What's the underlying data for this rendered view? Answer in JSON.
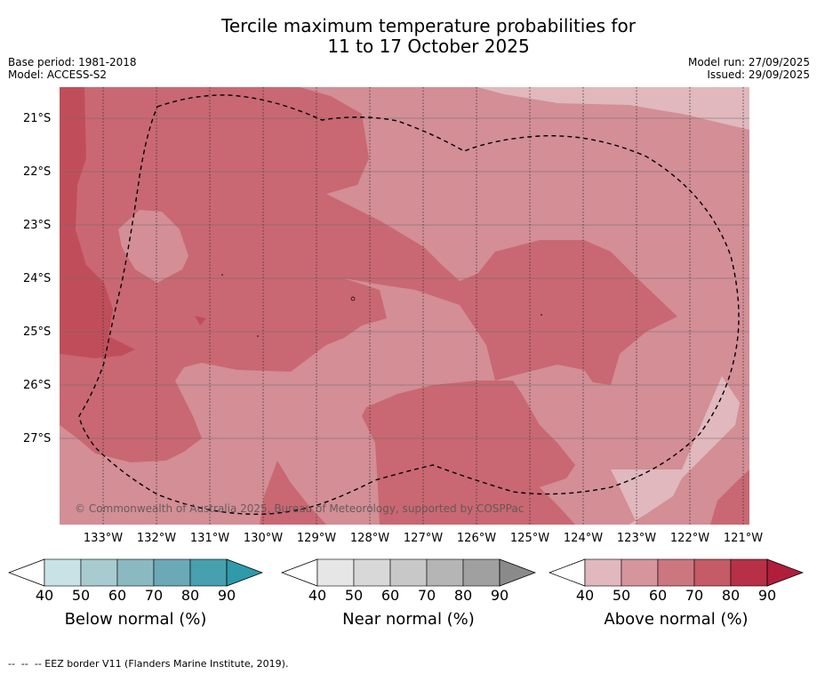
{
  "title": {
    "line1": "Tercile maximum temperature probabilities for",
    "line2": "11 to 17 October 2025"
  },
  "meta_left": {
    "base_period": "Base period: 1981-2018",
    "model": "Model: ACCESS-S2"
  },
  "meta_right": {
    "model_run": "Model run: 27/09/2025",
    "issued": "Issued: 29/09/2025"
  },
  "map": {
    "lat_labels": [
      "21°S",
      "22°S",
      "23°S",
      "24°S",
      "25°S",
      "26°S",
      "27°S"
    ],
    "lon_labels": [
      "133°W",
      "132°W",
      "131°W",
      "130°W",
      "129°W",
      "128°W",
      "127°W",
      "126°W",
      "125°W",
      "124°W",
      "123°W",
      "122°W",
      "121°W"
    ],
    "copyright": "© Commonwealth of Australia 2025, Bureau of Meteorology, supported by COSPPac",
    "colors": {
      "above_50": "#d38e96",
      "above_60": "#c96872",
      "above_70": "#c04e5a",
      "above_40": "#e0b8bd"
    }
  },
  "colorbars": [
    {
      "title": "Below normal (%)",
      "ticks": [
        "40",
        "50",
        "60",
        "70",
        "80",
        "90"
      ],
      "colors": [
        "#ffffff",
        "#c9e2e6",
        "#a8cbd0",
        "#8bb9c2",
        "#6aa9b5",
        "#46a0ae",
        "#2e9aaa"
      ]
    },
    {
      "title": "Near normal (%)",
      "ticks": [
        "40",
        "50",
        "60",
        "70",
        "80",
        "90"
      ],
      "colors": [
        "#ffffff",
        "#e6e6e6",
        "#d8d8d8",
        "#c8c8c8",
        "#b5b5b5",
        "#a0a0a0",
        "#8a8a8a"
      ]
    },
    {
      "title": "Above normal (%)",
      "ticks": [
        "40",
        "50",
        "60",
        "70",
        "80",
        "90"
      ],
      "colors": [
        "#ffffff",
        "#e0b8bd",
        "#d6959d",
        "#cc7780",
        "#c45b66",
        "#b83048",
        "#b01e3c"
      ]
    }
  ],
  "footer": "--  --  -- EEZ border V11 (Flanders Marine Institute, 2019)."
}
